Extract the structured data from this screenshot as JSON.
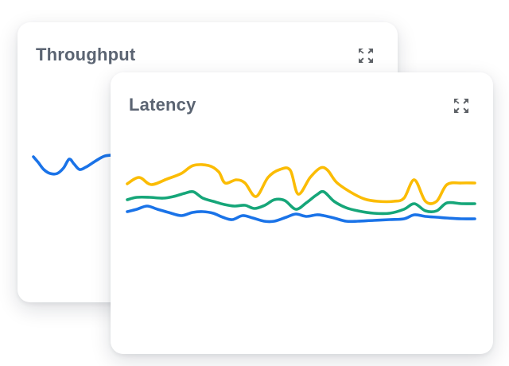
{
  "page": {
    "background": "#ffffff"
  },
  "colors": {
    "card_background": "#ffffff",
    "title_text": "#5b6472",
    "expand_icon": "#5f6368",
    "series_blue": "#1a73e8",
    "series_yellow": "#fbbc04",
    "series_green": "#16a679"
  },
  "cards": [
    {
      "title": "Throughput",
      "icon": "expand-icon",
      "chart": {
        "type": "line",
        "stroke_width": 3.6,
        "x_axis_visible": false,
        "y_axis_visible": false,
        "grid": false,
        "legend": false,
        "series": [
          {
            "color": "#1a73e8",
            "points": [
              [
                0,
                69
              ],
              [
                6,
                76
              ],
              [
                13,
                85
              ],
              [
                21,
                90
              ],
              [
                30,
                90
              ],
              [
                38,
                83
              ],
              [
                45,
                72
              ],
              [
                51,
                78
              ],
              [
                58,
                85
              ],
              [
                66,
                82
              ],
              [
                74,
                77
              ],
              [
                82,
                72
              ],
              [
                90,
                68
              ],
              [
                100,
                67
              ],
              [
                112,
                67
              ],
              [
                124,
                67
              ]
            ]
          }
        ]
      }
    },
    {
      "title": "Latency",
      "icon": "expand-icon",
      "chart": {
        "type": "line",
        "stroke_width": 3.6,
        "x_axis_visible": false,
        "y_axis_visible": false,
        "grid": false,
        "legend": false,
        "series": [
          {
            "color": "#fbbc04",
            "points": [
              [
                1,
                40
              ],
              [
                16,
                32
              ],
              [
                31,
                41
              ],
              [
                51,
                34
              ],
              [
                69,
                27
              ],
              [
                84,
                17
              ],
              [
                103,
                17
              ],
              [
                116,
                25
              ],
              [
                124,
                39
              ],
              [
                138,
                35
              ],
              [
                149,
                39
              ],
              [
                163,
                56
              ],
              [
                178,
                32
              ],
              [
                193,
                22
              ],
              [
                206,
                23
              ],
              [
                216,
                53
              ],
              [
                231,
                32
              ],
              [
                244,
                20
              ],
              [
                253,
                23
              ],
              [
                264,
                38
              ],
              [
                281,
                50
              ],
              [
                299,
                59
              ],
              [
                316,
                62
              ],
              [
                336,
                62
              ],
              [
                349,
                58
              ],
              [
                362,
                35
              ],
              [
                376,
                62
              ],
              [
                390,
                62
              ],
              [
                403,
                41
              ],
              [
                421,
                39
              ],
              [
                438,
                39
              ]
            ]
          },
          {
            "color": "#16a679",
            "points": [
              [
                1,
                60
              ],
              [
                13,
                57
              ],
              [
                29,
                57
              ],
              [
                46,
                58
              ],
              [
                59,
                56
              ],
              [
                73,
                52
              ],
              [
                84,
                50
              ],
              [
                96,
                58
              ],
              [
                109,
                62
              ],
              [
                123,
                66
              ],
              [
                136,
                68
              ],
              [
                149,
                67
              ],
              [
                161,
                71
              ],
              [
                174,
                67
              ],
              [
                186,
                60
              ],
              [
                199,
                61
              ],
              [
                213,
                72
              ],
              [
                226,
                64
              ],
              [
                239,
                54
              ],
              [
                248,
                50
              ],
              [
                261,
                62
              ],
              [
                276,
                70
              ],
              [
                291,
                74
              ],
              [
                311,
                77
              ],
              [
                331,
                77
              ],
              [
                349,
                72
              ],
              [
                362,
                65
              ],
              [
                376,
                74
              ],
              [
                390,
                74
              ],
              [
                403,
                64
              ],
              [
                421,
                65
              ],
              [
                438,
                65
              ]
            ]
          },
          {
            "color": "#1a73e8",
            "points": [
              [
                1,
                75
              ],
              [
                13,
                72
              ],
              [
                26,
                68
              ],
              [
                39,
                72
              ],
              [
                53,
                76
              ],
              [
                69,
                80
              ],
              [
                83,
                76
              ],
              [
                96,
                75
              ],
              [
                109,
                77
              ],
              [
                121,
                82
              ],
              [
                133,
                85
              ],
              [
                146,
                80
              ],
              [
                159,
                83
              ],
              [
                173,
                87
              ],
              [
                186,
                87
              ],
              [
                201,
                82
              ],
              [
                213,
                78
              ],
              [
                226,
                81
              ],
              [
                239,
                79
              ],
              [
                248,
                80
              ],
              [
                261,
                83
              ],
              [
                276,
                87
              ],
              [
                291,
                87
              ],
              [
                311,
                86
              ],
              [
                331,
                85
              ],
              [
                349,
                84
              ],
              [
                362,
                79
              ],
              [
                376,
                81
              ],
              [
                390,
                82
              ],
              [
                403,
                83
              ],
              [
                421,
                84
              ],
              [
                438,
                84
              ]
            ]
          }
        ]
      }
    }
  ]
}
